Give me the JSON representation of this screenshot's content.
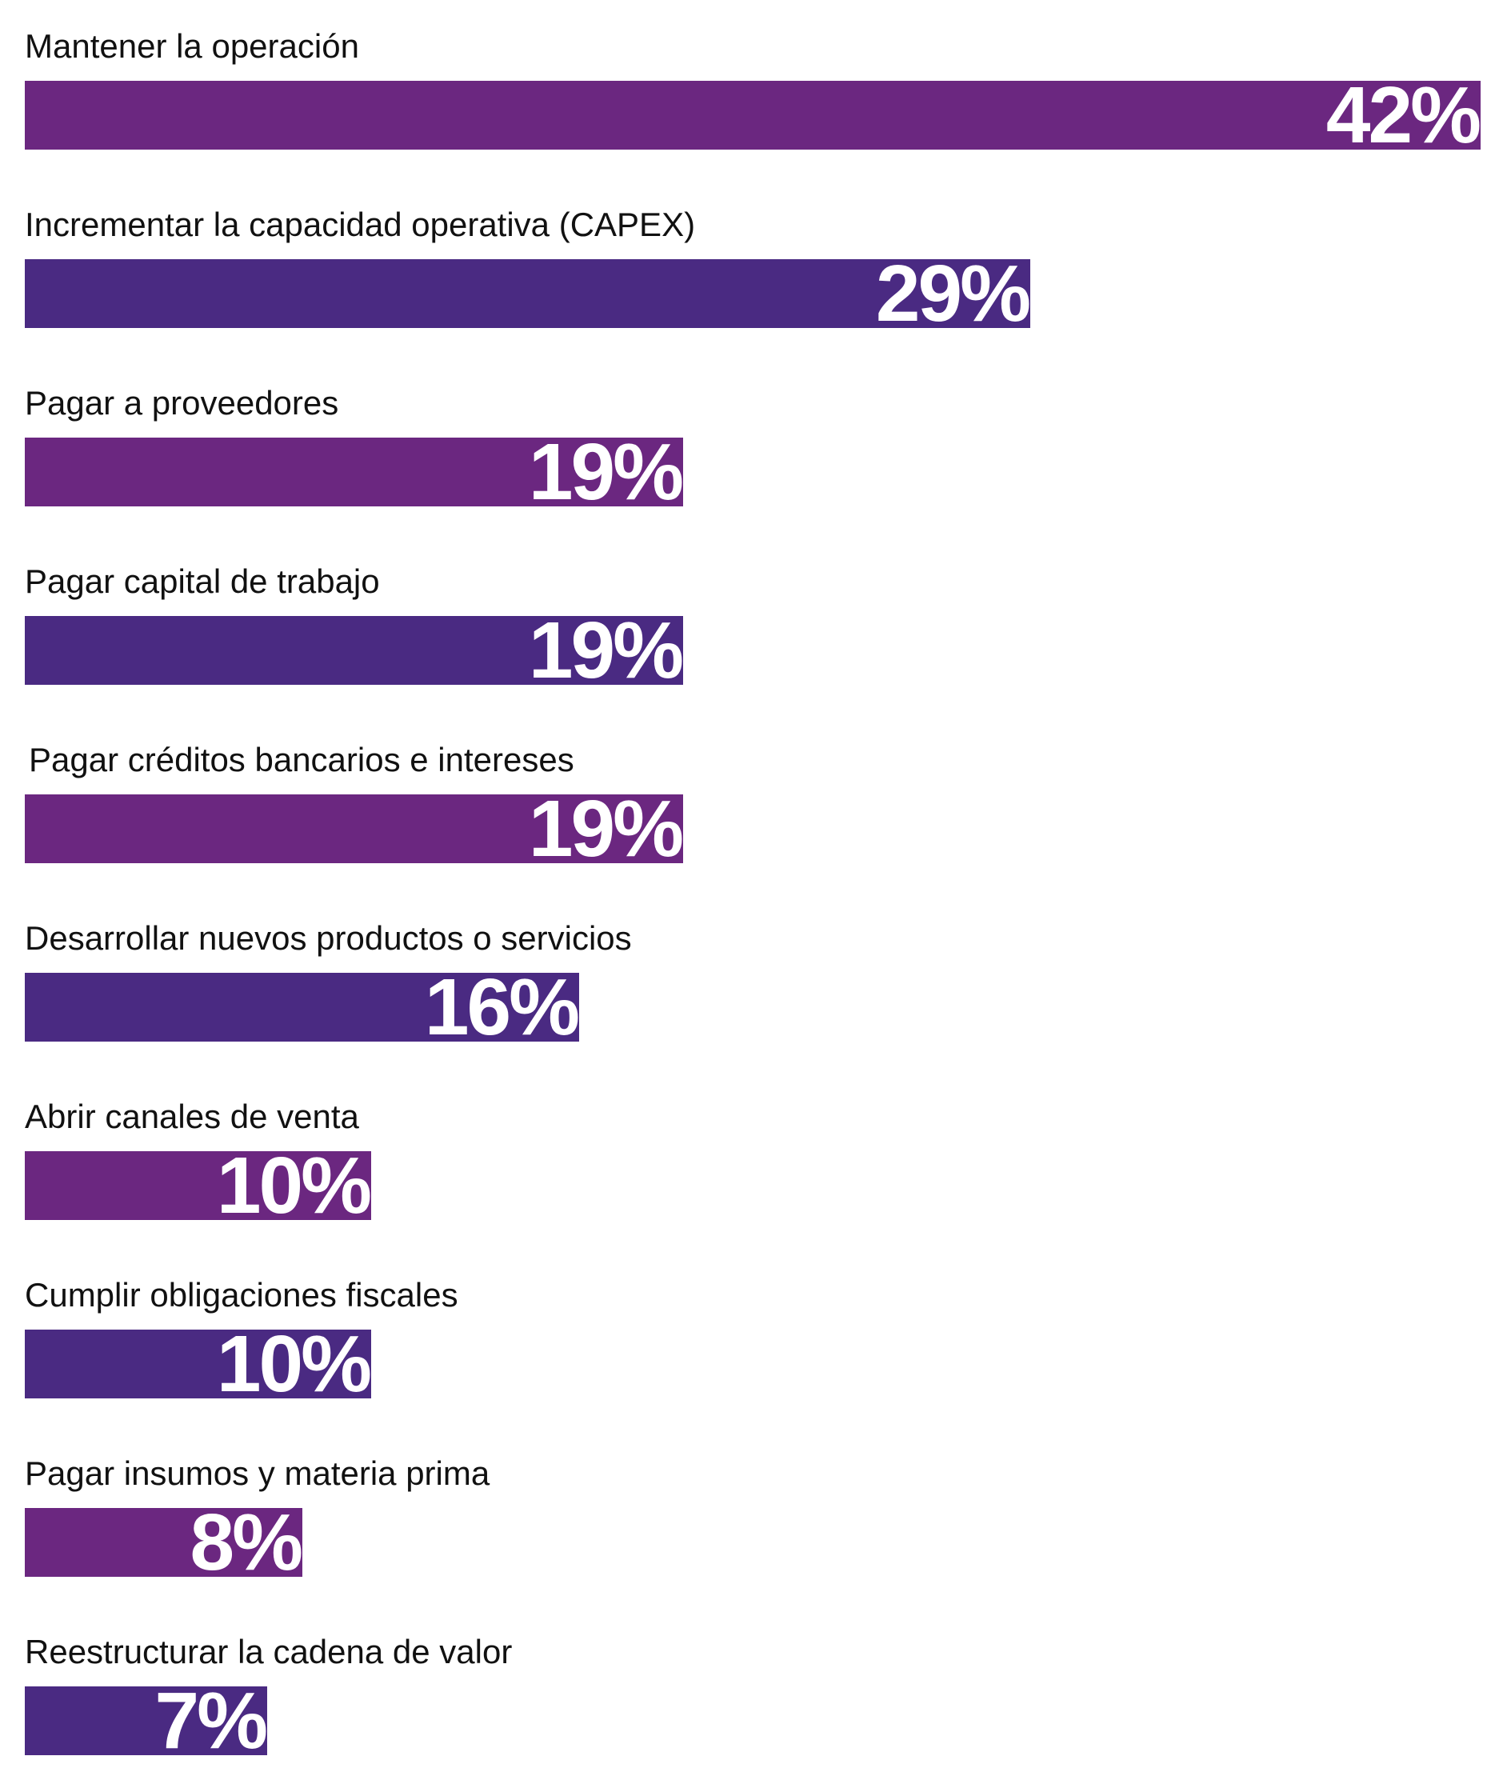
{
  "chart_data": {
    "type": "bar",
    "orientation": "horizontal",
    "categories": [
      "Mantener la operación",
      "Incrementar la capacidad operativa (CAPEX)",
      "Pagar a proveedores",
      "Pagar capital de trabajo",
      "Pagar créditos bancarios e intereses",
      "Desarrollar nuevos productos o servicios",
      "Abrir canales de venta",
      "Cumplir obligaciones fiscales",
      "Pagar insumos y materia prima",
      "Reestructurar la cadena de valor"
    ],
    "values": [
      42,
      29,
      19,
      19,
      19,
      16,
      10,
      10,
      8,
      7
    ],
    "value_labels": [
      "42%",
      "29%",
      "19%",
      "19%",
      "19%",
      "16%",
      "10%",
      "10%",
      "8%",
      "7%"
    ],
    "unit": "%",
    "xlim": [
      0,
      42
    ],
    "grid": false,
    "legend": "none",
    "colors": [
      "#6b2780",
      "#4a2a82"
    ]
  }
}
